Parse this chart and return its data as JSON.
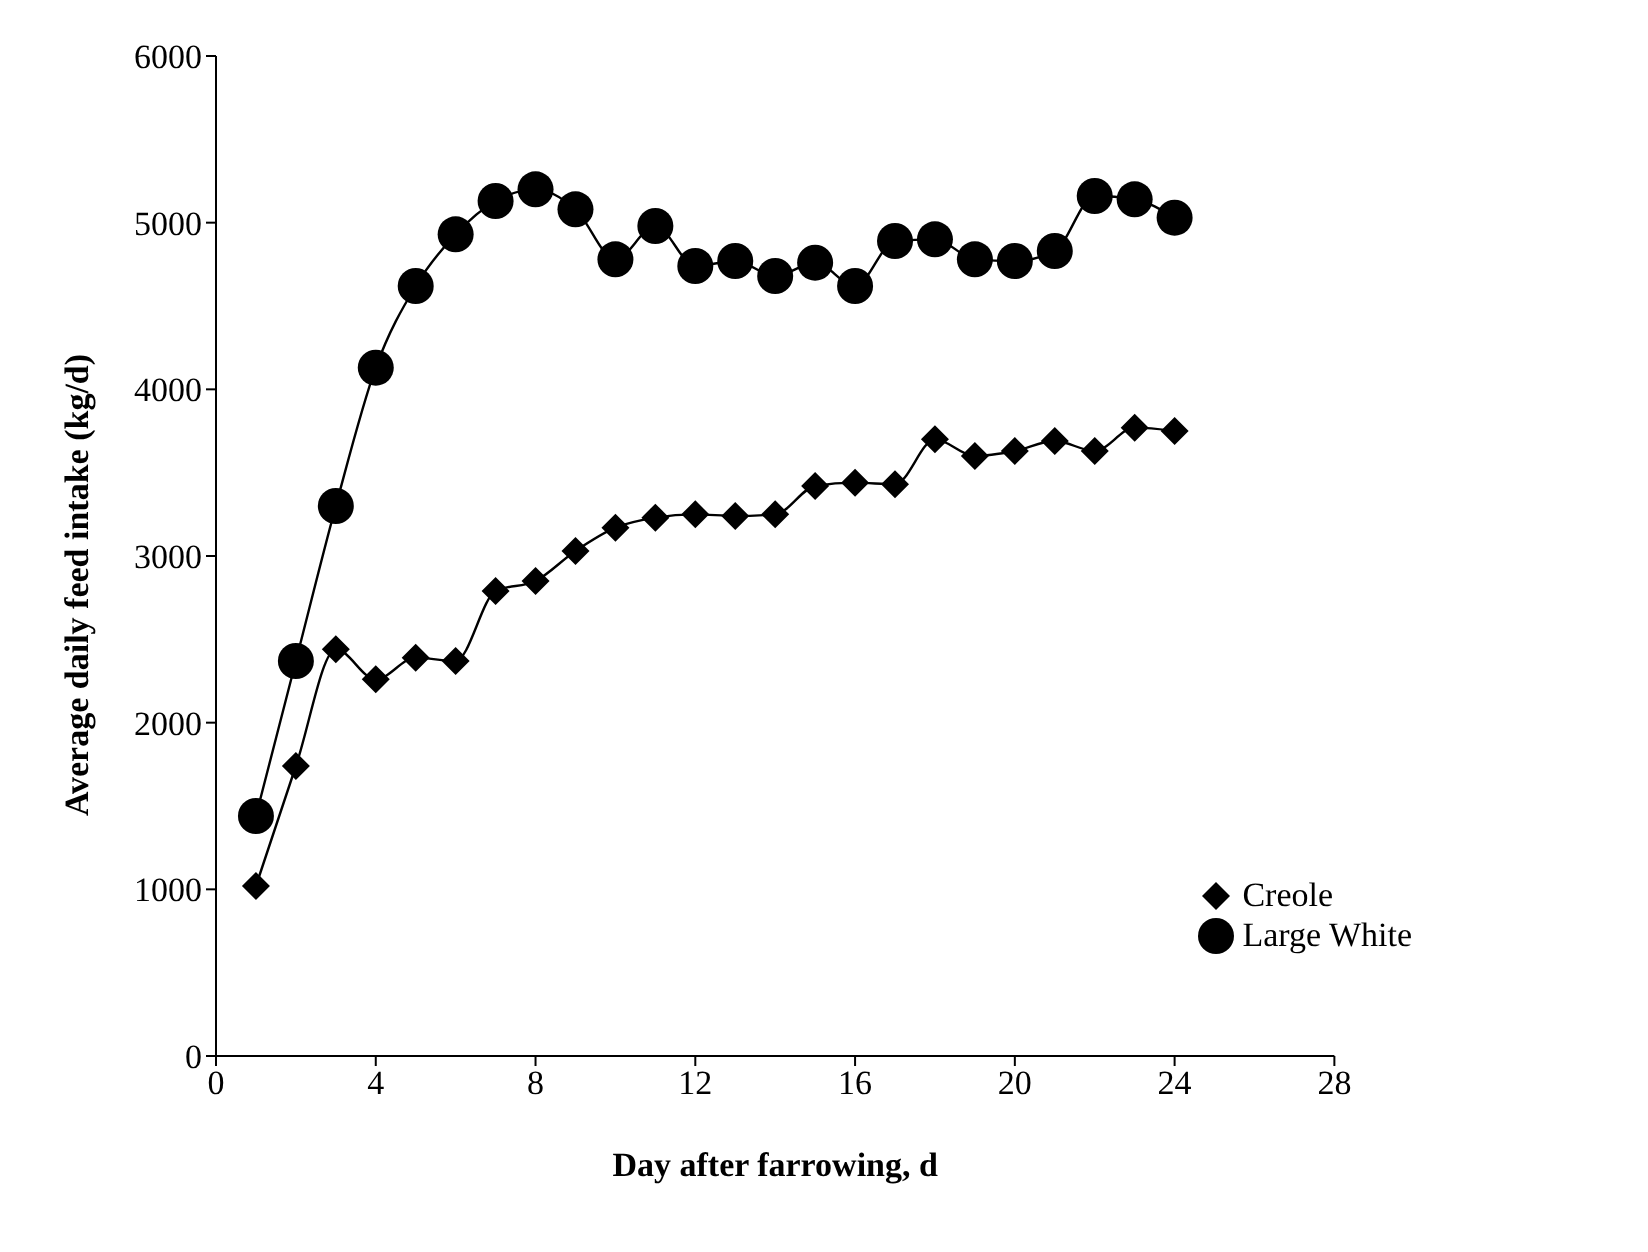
{
  "chart_data": {
    "type": "line",
    "xlabel": "Day after farrowing, d",
    "ylabel": "Average daily feed intake (kg/d)",
    "x": [
      1,
      2,
      3,
      4,
      5,
      6,
      7,
      8,
      9,
      10,
      11,
      12,
      13,
      14,
      15,
      16,
      17,
      18,
      19,
      20,
      21,
      22,
      23,
      24
    ],
    "series": [
      {
        "name": "Creole",
        "color": "#000000",
        "marker": "diamond",
        "values": [
          1020,
          1740,
          2440,
          2260,
          2390,
          2370,
          2790,
          2850,
          3030,
          3170,
          3230,
          3250,
          3240,
          3250,
          3420,
          3440,
          3430,
          3700,
          3600,
          3630,
          3690,
          3630,
          3770,
          3750
        ]
      },
      {
        "name": "Large White",
        "color": "#000000",
        "marker": "circle",
        "values": [
          1440,
          2370,
          3300,
          4130,
          4620,
          4930,
          5130,
          5200,
          5080,
          4780,
          4980,
          4740,
          4770,
          4680,
          4760,
          4620,
          4890,
          4900,
          4780,
          4770,
          4830,
          5160,
          5140,
          5030
        ]
      }
    ],
    "xlim": [
      0,
      28
    ],
    "xticks": [
      0,
      4,
      8,
      12,
      16,
      20,
      24,
      28
    ],
    "ylim": [
      0,
      6000
    ],
    "yticks": [
      0,
      1000,
      2000,
      3000,
      4000,
      5000,
      6000
    ],
    "grid": false,
    "legend": "bottom right",
    "line_style": "solid"
  }
}
